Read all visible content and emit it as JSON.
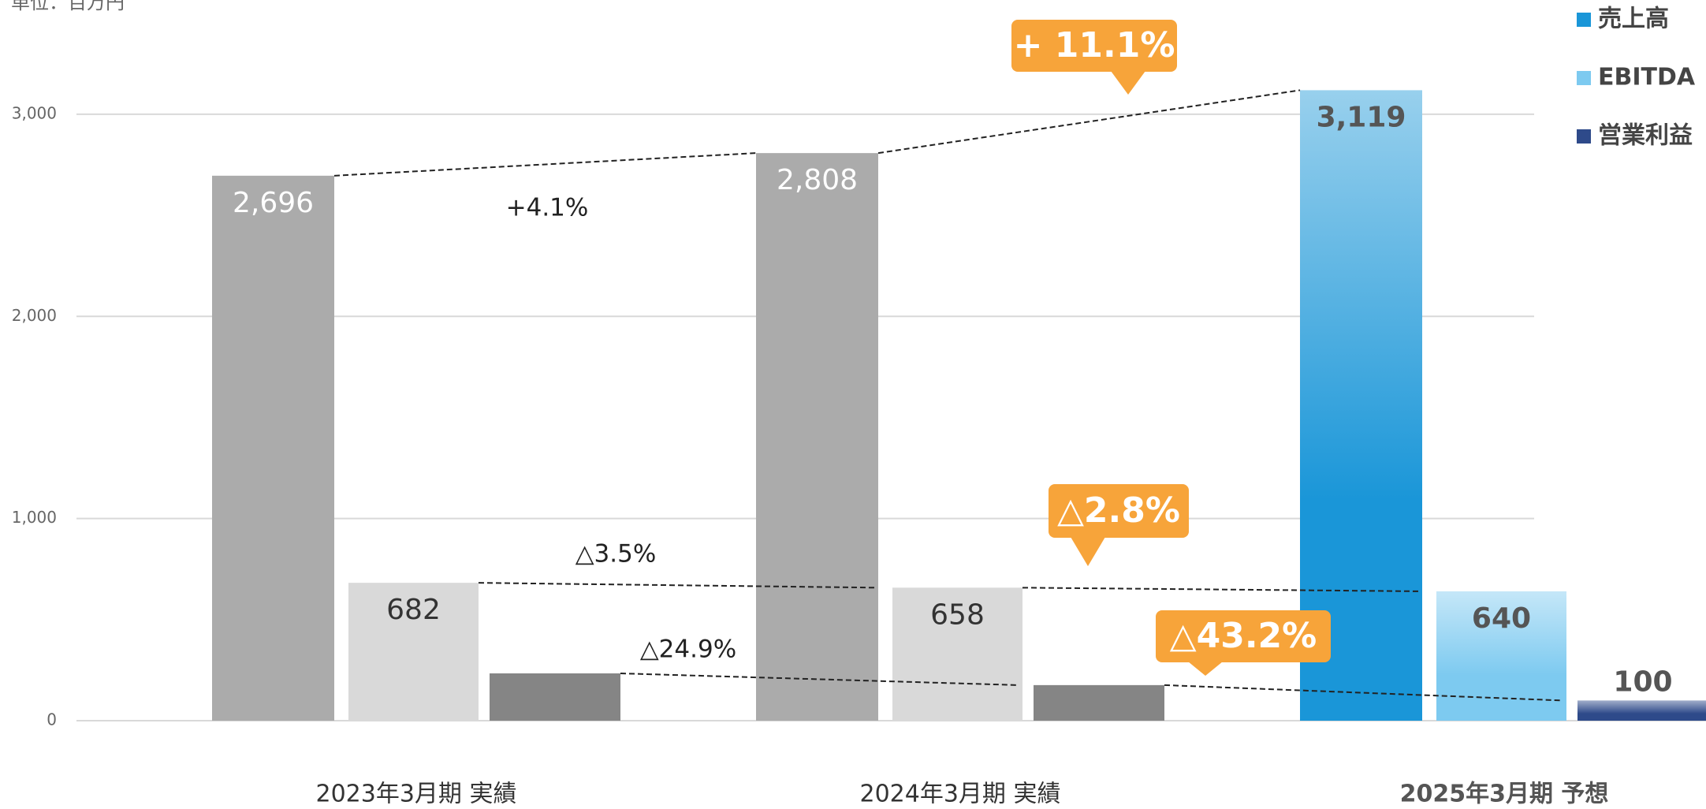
{
  "chart_data": {
    "type": "bar",
    "unit_label": "単位：百万円",
    "categories": [
      "2023年3月期 実績",
      "2024年3月期 実績",
      "2025年3月期 予想"
    ],
    "series": [
      {
        "name": "売上高",
        "color": "#1a96d8",
        "point_colors": [
          "#ababab",
          "#ababab",
          "#1a96d8"
        ],
        "values": [
          2696,
          2808,
          3119
        ],
        "value_labels": [
          "2,696",
          "2,808",
          "3,119"
        ]
      },
      {
        "name": "EBITDA",
        "color": "#7dcaf0",
        "point_colors": [
          "#d9d9d9",
          "#d9d9d9",
          "#7dcaf0"
        ],
        "values": [
          682,
          658,
          640
        ]
      },
      {
        "name": "営業利益",
        "color": "#2e4a8a",
        "point_colors": [
          "#858585",
          "#858585",
          "#2e4a8a"
        ],
        "values": [
          234,
          176,
          100
        ]
      }
    ],
    "annotations": [
      {
        "text": "+4.1%",
        "style": "plain"
      },
      {
        "text": "+ 11.1%",
        "style": "callout"
      },
      {
        "text": "△3.5%",
        "style": "plain"
      },
      {
        "text": "△2.8%",
        "style": "callout"
      },
      {
        "text": "△24.9%",
        "style": "plain"
      },
      {
        "text": "△43.2%",
        "style": "callout"
      }
    ],
    "ylim": [
      0,
      3300
    ],
    "yticks": [
      0,
      {
        "value": 1000,
        "label": "1,000"
      },
      {
        "value": 2000,
        "label": "2,000"
      },
      {
        "value": 3000,
        "label": "3,000"
      }
    ],
    "grid": true,
    "legend": "top-right"
  }
}
